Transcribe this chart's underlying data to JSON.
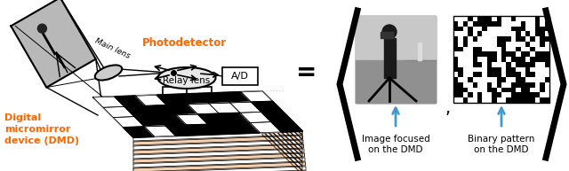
{
  "bg_color": "#ffffff",
  "orange_color": "#FF6600",
  "blue_arrow_color": "#4499CC",
  "black_color": "#000000",
  "text_main_lens": "Main lens",
  "text_relay_lens": "Relay lens",
  "text_photodetector": "Photodetector",
  "text_ad": "A/D",
  "text_dmd": "Digital\nmicromirror\ndevice (DMD)",
  "text_image_focused": "Image focused\non the DMD",
  "text_binary_pattern": "Binary pattern\non the DMD",
  "fig_width": 6.4,
  "fig_height": 1.93
}
